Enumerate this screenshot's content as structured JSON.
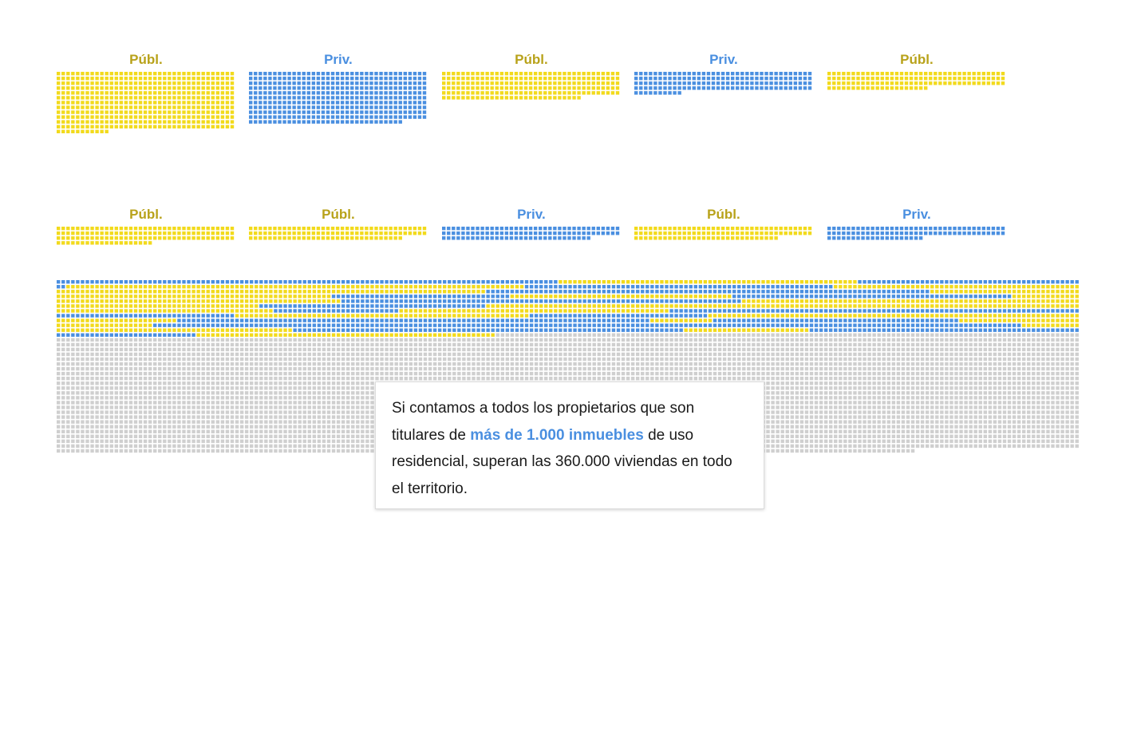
{
  "colors": {
    "publico": "#f2da1c",
    "privado": "#4a8fe0",
    "resto": "#cfcfcf",
    "label_publico": "#b8a21a",
    "label_privado": "#4a8fe0"
  },
  "callout": {
    "text_before": "Si contamos a todos los propietarios que son titulares de ",
    "highlight": "más de 1.000 inmuebles",
    "text_after": " de uso residencial, superan las 360.000 viviendas en todo el territorio."
  },
  "chart_data": {
    "type": "waffle",
    "owners": [
      {
        "label": "Públ.",
        "kind": "publico",
        "units": 455
      },
      {
        "label": "Priv.",
        "kind": "privado",
        "units": 402
      },
      {
        "label": "Públ.",
        "kind": "publico",
        "units": 214
      },
      {
        "label": "Priv.",
        "kind": "privado",
        "units": 158
      },
      {
        "label": "Públ.",
        "kind": "publico",
        "units": 132
      },
      {
        "label": "Públ.",
        "kind": "publico",
        "units": 131
      },
      {
        "label": "Públ.",
        "kind": "publico",
        "units": 106
      },
      {
        "label": "Priv.",
        "kind": "privado",
        "units": 105
      },
      {
        "label": "Públ.",
        "kind": "publico",
        "units": 104
      },
      {
        "label": "Priv.",
        "kind": "privado",
        "units": 94
      }
    ],
    "aggregate": {
      "pattern": [
        "privado",
        "publico",
        "privado",
        "publico",
        "privado",
        "publico",
        "privado",
        "publico",
        "privado",
        "publico",
        "privado",
        "publico",
        "privado",
        "publico",
        "privado",
        "publico",
        "privado",
        "publico",
        "privado",
        "publico",
        "privado",
        "publico",
        "privado",
        "publico",
        "privado",
        "publico",
        "privado",
        "publico",
        "privado",
        "publico",
        "privado",
        "publico"
      ],
      "lengths": [
        104,
        62,
        48,
        95,
        64,
        140,
        92,
        88,
        37,
        46,
        58,
        73,
        83,
        112,
        47,
        168,
        26,
        56,
        122,
        61,
        37,
        102,
        98,
        13,
        51,
        45,
        180,
        61,
        81,
        26,
        85,
        62
      ],
      "total_cells": 2401
    },
    "resto_cells": 5175
  }
}
